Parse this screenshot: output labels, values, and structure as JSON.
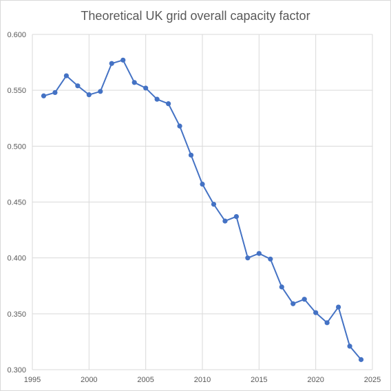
{
  "chart_data": {
    "type": "scatter",
    "title": "Theoretical UK grid overall capacity factor",
    "xlabel": "",
    "ylabel": "",
    "xlim": [
      1995,
      2025
    ],
    "ylim": [
      0.3,
      0.6
    ],
    "x_ticks": [
      "1995",
      "2000",
      "2005",
      "2010",
      "2015",
      "2020",
      "2025"
    ],
    "y_ticks": [
      "0.300",
      "0.350",
      "0.400",
      "0.450",
      "0.500",
      "0.550",
      "0.600"
    ],
    "grid": true,
    "legend": "none",
    "series": [
      {
        "color": "#4472c4",
        "x": [
          1996,
          1997,
          1998,
          1999,
          2000,
          2001,
          2002,
          2003,
          2004,
          2005,
          2006,
          2007,
          2008,
          2009,
          2010,
          2011,
          2012,
          2013,
          2014,
          2015,
          2016,
          2017,
          2018,
          2019,
          2020,
          2021,
          2022,
          2023,
          2024
        ],
        "y": [
          0.545,
          0.548,
          0.563,
          0.554,
          0.546,
          0.549,
          0.574,
          0.577,
          0.557,
          0.552,
          0.542,
          0.538,
          0.518,
          0.492,
          0.466,
          0.448,
          0.433,
          0.437,
          0.4,
          0.404,
          0.399,
          0.374,
          0.359,
          0.363,
          0.351,
          0.342,
          0.356,
          0.321,
          0.309
        ]
      }
    ]
  }
}
